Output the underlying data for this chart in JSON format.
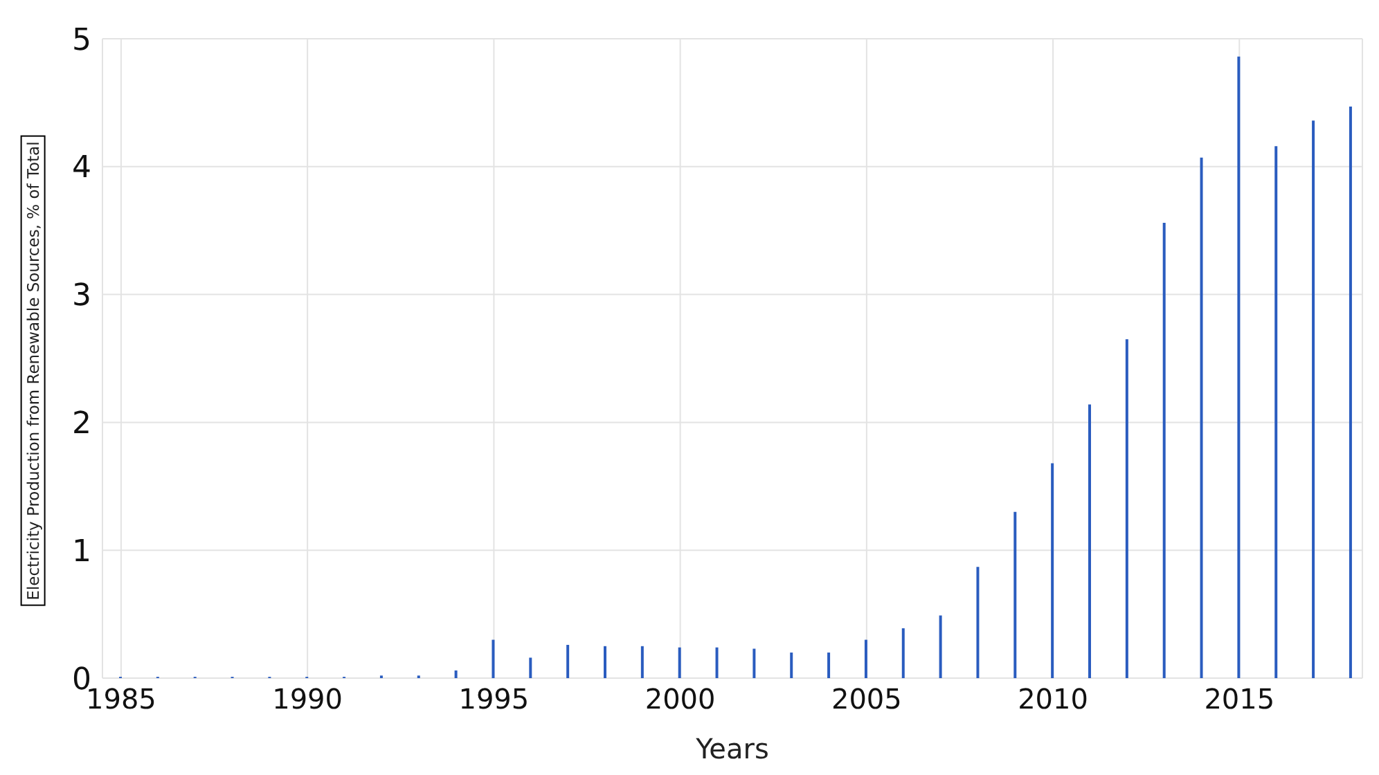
{
  "chart_data": {
    "type": "bar",
    "xlabel": "Years",
    "ylabel": "Electricity Production from Renewable Sources, % of Total",
    "x": [
      1985,
      1986,
      1987,
      1988,
      1989,
      1990,
      1991,
      1992,
      1993,
      1994,
      1995,
      1996,
      1997,
      1998,
      1999,
      2000,
      2001,
      2002,
      2003,
      2004,
      2005,
      2006,
      2007,
      2008,
      2009,
      2010,
      2011,
      2012,
      2013,
      2014,
      2015,
      2016,
      2017,
      2018
    ],
    "values": [
      0.01,
      0.01,
      0.01,
      0.01,
      0.01,
      0.01,
      0.01,
      0.02,
      0.02,
      0.06,
      0.3,
      0.16,
      0.26,
      0.25,
      0.25,
      0.24,
      0.24,
      0.23,
      0.2,
      0.2,
      0.3,
      0.39,
      0.49,
      0.87,
      1.3,
      1.68,
      2.14,
      2.65,
      3.56,
      4.07,
      4.86,
      4.16,
      4.36,
      4.47
    ],
    "color": "#2a5cbf",
    "xlim": [
      1984.5,
      2018.3
    ],
    "xticks": [
      1985,
      1990,
      1995,
      2000,
      2005,
      2010,
      2015
    ],
    "ylim": [
      0,
      5
    ],
    "yticks": [
      0,
      1,
      2,
      3,
      4,
      5
    ],
    "grid": true
  }
}
